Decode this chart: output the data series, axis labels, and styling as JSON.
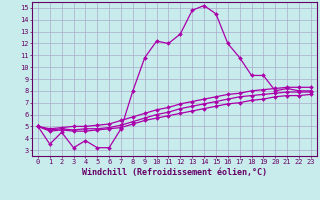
{
  "xlabel": "Windchill (Refroidissement éolien,°C)",
  "bg_color": "#c8ecec",
  "line_color": "#aa00aa",
  "grid_color": "#aaaacc",
  "xlim": [
    -0.5,
    23.5
  ],
  "ylim": [
    2.5,
    15.5
  ],
  "xticks": [
    0,
    1,
    2,
    3,
    4,
    5,
    6,
    7,
    8,
    9,
    10,
    11,
    12,
    13,
    14,
    15,
    16,
    17,
    18,
    19,
    20,
    21,
    22,
    23
  ],
  "yticks": [
    3,
    4,
    5,
    6,
    7,
    8,
    9,
    10,
    11,
    12,
    13,
    14,
    15
  ],
  "line1_x": [
    0,
    1,
    2,
    3,
    4,
    5,
    6,
    7,
    8,
    9,
    10,
    11,
    12,
    13,
    14,
    15,
    16,
    17,
    18,
    19,
    20,
    21,
    22,
    23
  ],
  "line1_y": [
    5.0,
    3.5,
    4.5,
    3.2,
    3.8,
    3.2,
    3.2,
    4.8,
    8.0,
    10.8,
    12.2,
    12.0,
    12.8,
    14.8,
    15.2,
    14.5,
    12.0,
    10.8,
    9.3,
    9.3,
    8.0,
    8.2,
    8.0,
    8.0
  ],
  "line2_x": [
    0,
    1,
    2,
    3,
    4,
    5,
    6,
    7,
    8,
    9,
    10,
    11,
    12,
    13,
    14,
    15,
    16,
    17,
    18,
    19,
    20,
    21,
    22,
    23
  ],
  "line2_y": [
    5.0,
    4.8,
    4.9,
    5.0,
    5.0,
    5.1,
    5.2,
    5.5,
    5.8,
    6.1,
    6.4,
    6.6,
    6.9,
    7.1,
    7.3,
    7.5,
    7.7,
    7.8,
    8.0,
    8.1,
    8.2,
    8.3,
    8.3,
    8.3
  ],
  "line3_x": [
    0,
    1,
    2,
    3,
    4,
    5,
    6,
    7,
    8,
    9,
    10,
    11,
    12,
    13,
    14,
    15,
    16,
    17,
    18,
    19,
    20,
    21,
    22,
    23
  ],
  "line3_y": [
    5.0,
    4.7,
    4.8,
    4.7,
    4.8,
    4.8,
    4.9,
    5.1,
    5.4,
    5.7,
    6.0,
    6.2,
    6.5,
    6.7,
    6.9,
    7.1,
    7.3,
    7.5,
    7.6,
    7.7,
    7.8,
    7.9,
    7.9,
    7.9
  ],
  "line4_x": [
    0,
    1,
    2,
    3,
    4,
    5,
    6,
    7,
    8,
    9,
    10,
    11,
    12,
    13,
    14,
    15,
    16,
    17,
    18,
    19,
    20,
    21,
    22,
    23
  ],
  "line4_y": [
    5.0,
    4.6,
    4.7,
    4.6,
    4.6,
    4.7,
    4.8,
    4.9,
    5.2,
    5.5,
    5.7,
    5.9,
    6.1,
    6.3,
    6.5,
    6.7,
    6.9,
    7.0,
    7.2,
    7.3,
    7.5,
    7.6,
    7.6,
    7.7
  ],
  "marker_size": 2.0,
  "line_width": 0.9,
  "tick_fontsize": 5.0,
  "label_fontsize": 6.0
}
